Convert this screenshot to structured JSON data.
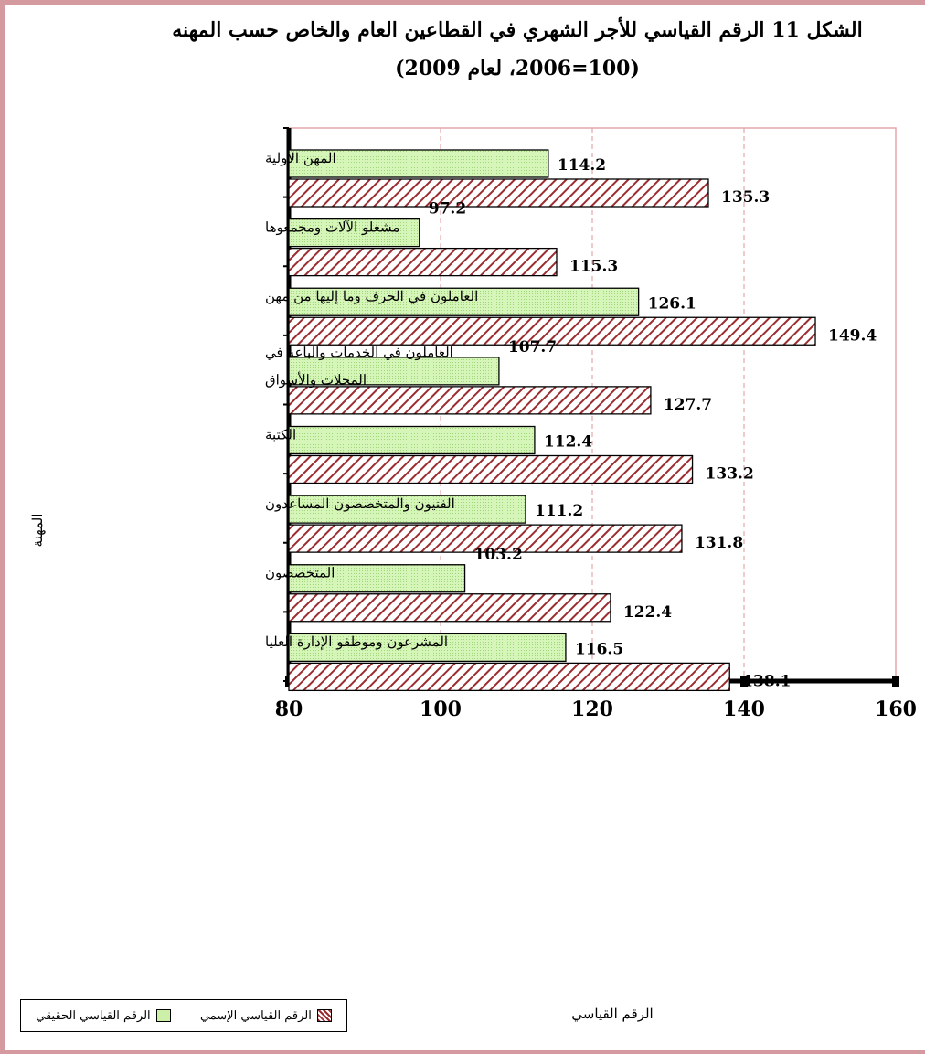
{
  "chart_data": {
    "type": "bar",
    "orientation": "horizontal",
    "title": "الشكل 11 الرقم القياسي للأجر الشهري في القطاعين العام والخاص حسب المهنه",
    "subtitle": "(100=2006، لعام 2009)",
    "xlabel": "الرقم القياسي",
    "ylabel": "المهنة",
    "xlim": [
      80,
      160
    ],
    "xticks": [
      "80",
      "100",
      "120",
      "140",
      "160"
    ],
    "grid": "vertical dashed",
    "legend_position": "bottom-left",
    "categories": [
      "المهن الأولية",
      "مشغلو الآلات ومجمعوها",
      "العاملون في الحرف وما إليها من مهن",
      "العاملون في الخدمات والباعة في المحلات والأسواق",
      "الكتبة",
      "الفنيون والمتخصصون المساعدون",
      "المتخصصون",
      "المشرعون وموظفو الإدارة العليا"
    ],
    "category_lines": [
      [
        "المهن الأولية"
      ],
      [
        "مشغلو الآلات ومجمعوها"
      ],
      [
        "العاملون في الحرف وما إليها من مهن"
      ],
      [
        "العاملون في الخدمات والباعة في",
        "المحلات والأسواق"
      ],
      [
        "الكتبة"
      ],
      [
        "الفنيون والمتخصصون المساعدون"
      ],
      [
        "المتخصصون"
      ],
      [
        "المشرعون وموظفو الإدارة العليا"
      ]
    ],
    "series": [
      {
        "name": "الرقم القياسي الحقيقي",
        "color": "#ccf0a8",
        "pattern": "dotted",
        "values": [
          114.2,
          97.2,
          126.1,
          107.7,
          112.4,
          111.2,
          103.2,
          116.5
        ],
        "labels": [
          "114.2",
          "97.2",
          "126.1",
          "107.7",
          "112.4",
          "111.2",
          "103.2",
          "116.5"
        ]
      },
      {
        "name": "الرقم القياسي الإسمي",
        "color": "#9b2d30",
        "pattern": "diagonal-hatch",
        "values": [
          135.3,
          115.3,
          149.4,
          127.7,
          133.2,
          131.8,
          122.4,
          138.1
        ],
        "labels": [
          "135.3",
          "115.3",
          "149.4",
          "127.7",
          "133.2",
          "131.8",
          "122.4",
          "138.1"
        ]
      }
    ]
  }
}
